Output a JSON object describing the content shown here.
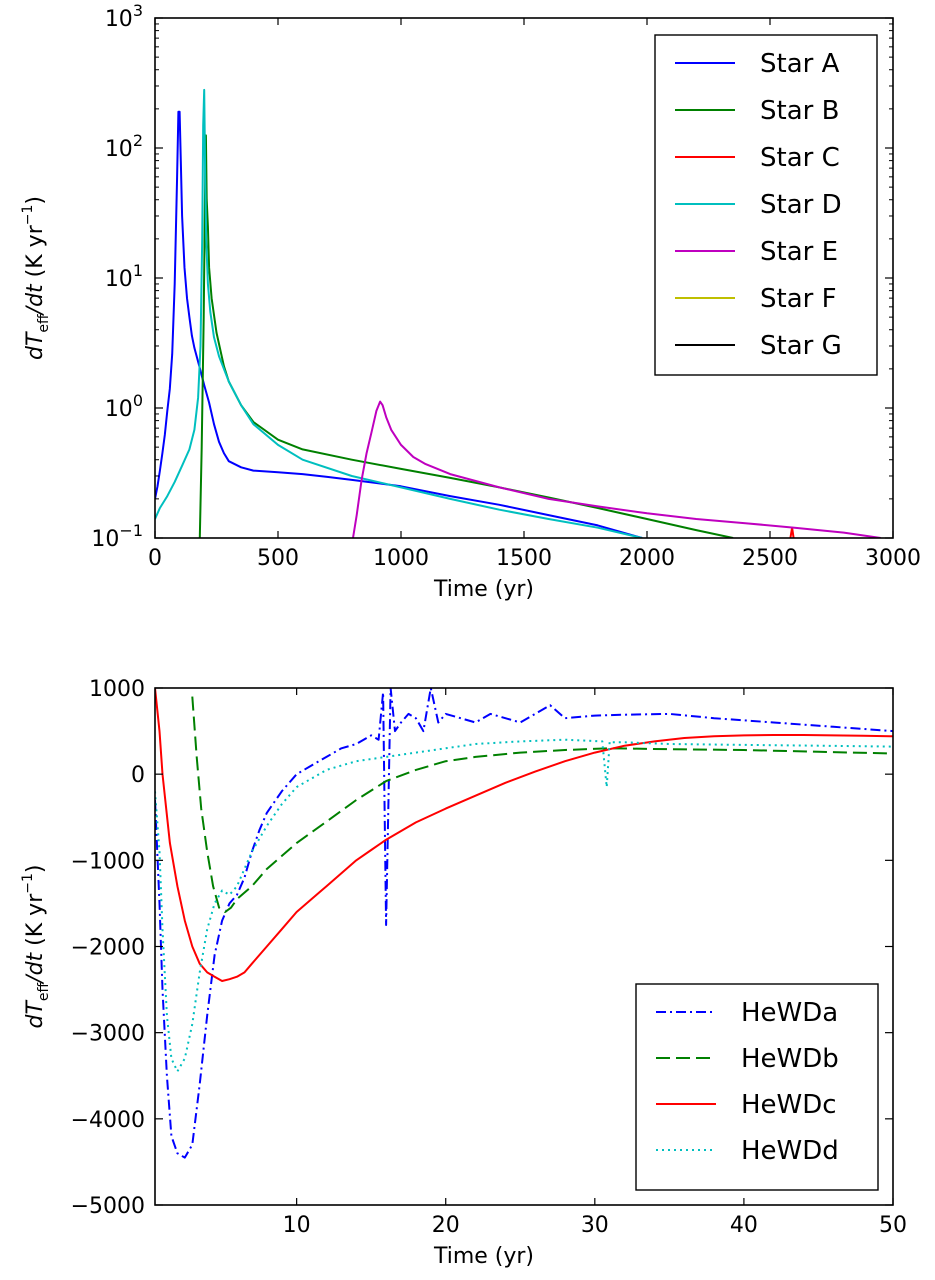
{
  "chart_data": [
    {
      "type": "line",
      "xlabel": "Time (yr)",
      "ylabel": "dT_eff/dt (K yr⁻¹)",
      "xlim": [
        0,
        3000
      ],
      "ylim": [
        0.1,
        1000
      ],
      "yscale": "log",
      "xticks": [
        "0",
        "500",
        "1000",
        "1500",
        "2000",
        "2500",
        "3000"
      ],
      "yticks": [
        {
          "base": "10",
          "exp": "−1"
        },
        {
          "base": "10",
          "exp": "0"
        },
        {
          "base": "10",
          "exp": "1"
        },
        {
          "base": "10",
          "exp": "2"
        },
        {
          "base": "10",
          "exp": "3"
        }
      ],
      "legend_position": "top-right",
      "grid": false,
      "series": [
        {
          "name": "Star A",
          "color": "#0000ff",
          "style": "solid",
          "x": [
            0,
            10,
            20,
            30,
            40,
            50,
            60,
            70,
            80,
            90,
            95,
            100,
            105,
            110,
            120,
            130,
            140,
            150,
            160,
            180,
            200,
            220,
            240,
            260,
            280,
            300,
            350,
            400,
            500,
            600,
            700,
            800,
            900,
            1000,
            1200,
            1400,
            1600,
            1800,
            1980
          ],
          "y": [
            0.2,
            0.25,
            0.33,
            0.45,
            0.62,
            0.95,
            1.4,
            2.6,
            9,
            60,
            190,
            190,
            80,
            30,
            12,
            7,
            5,
            3.6,
            2.9,
            2.1,
            1.5,
            1.1,
            0.75,
            0.55,
            0.45,
            0.39,
            0.35,
            0.33,
            0.32,
            0.31,
            0.295,
            0.28,
            0.265,
            0.25,
            0.21,
            0.18,
            0.15,
            0.125,
            0.1
          ]
        },
        {
          "name": "Star B",
          "color": "#008000",
          "style": "solid",
          "x": [
            182,
            190,
            198,
            204,
            207,
            210,
            215,
            220,
            230,
            250,
            280,
            300,
            350,
            400,
            500,
            600,
            800,
            1000,
            1200,
            1400,
            1600,
            1800,
            2000,
            2200,
            2350
          ],
          "y": [
            0.1,
            0.5,
            5,
            60,
            125,
            40,
            25,
            12,
            7,
            3.8,
            2.1,
            1.6,
            1.05,
            0.78,
            0.57,
            0.48,
            0.4,
            0.34,
            0.29,
            0.245,
            0.205,
            0.17,
            0.14,
            0.115,
            0.1
          ]
        },
        {
          "name": "Star C",
          "color": "#ff0000",
          "style": "solid",
          "x": [
            2583,
            2590,
            2596
          ],
          "y": [
            0.1,
            0.12,
            0.1
          ]
        },
        {
          "name": "Star D",
          "color": "#00bfbf",
          "style": "solid",
          "x": [
            0,
            20,
            50,
            80,
            110,
            140,
            160,
            175,
            185,
            192,
            196,
            200,
            204,
            208,
            215,
            225,
            240,
            260,
            300,
            350,
            400,
            500,
            600,
            800,
            1000,
            1200,
            1400,
            1600,
            1800,
            1980
          ],
          "y": [
            0.14,
            0.17,
            0.21,
            0.27,
            0.36,
            0.48,
            0.68,
            1.2,
            3,
            20,
            150,
            280,
            60,
            20,
            9,
            5.5,
            3.5,
            2.5,
            1.6,
            1.05,
            0.75,
            0.52,
            0.4,
            0.3,
            0.245,
            0.2,
            0.165,
            0.14,
            0.12,
            0.1
          ]
        },
        {
          "name": "Star E",
          "color": "#bf00bf",
          "style": "solid",
          "x": [
            805,
            820,
            840,
            860,
            880,
            900,
            915,
            925,
            940,
            960,
            1000,
            1050,
            1100,
            1200,
            1400,
            1600,
            1800,
            2000,
            2200,
            2300,
            2400,
            2600,
            2800,
            2950
          ],
          "y": [
            0.1,
            0.15,
            0.28,
            0.45,
            0.65,
            0.95,
            1.12,
            1.05,
            0.85,
            0.68,
            0.52,
            0.42,
            0.37,
            0.31,
            0.245,
            0.2,
            0.175,
            0.155,
            0.14,
            0.135,
            0.13,
            0.12,
            0.11,
            0.1
          ]
        },
        {
          "name": "Star F",
          "color": "#bfbf00",
          "style": "solid",
          "x": [],
          "y": []
        },
        {
          "name": "Star G",
          "color": "#000000",
          "style": "solid",
          "x": [],
          "y": []
        }
      ]
    },
    {
      "type": "line",
      "xlabel": "Time (yr)",
      "ylabel": "dT_eff/dt (K yr⁻¹)",
      "xlim": [
        0.5,
        50
      ],
      "ylim": [
        -5000,
        1000
      ],
      "xticks": [
        "10",
        "20",
        "30",
        "40",
        "50"
      ],
      "yticks": [
        "1000",
        "0",
        "−1000",
        "−2000",
        "−3000",
        "−4000",
        "−5000"
      ],
      "legend_position": "lower-right",
      "grid": false,
      "series": [
        {
          "name": "HeWDa",
          "color": "#0000ff",
          "style": "dashdot",
          "x": [
            0.5,
            0.8,
            1.0,
            1.3,
            1.6,
            2.0,
            2.5,
            3.0,
            3.5,
            4.0,
            4.5,
            5.0,
            5.5,
            6.0,
            6.5,
            7.0,
            7.5,
            8.0,
            9.0,
            10.0,
            11.0,
            12.0,
            13.0,
            14.0,
            15.0,
            15.5,
            15.8,
            16.0,
            16.3,
            16.6,
            17.0,
            17.5,
            18.0,
            18.5,
            19.0,
            19.5,
            20.0,
            21.0,
            22.0,
            23.0,
            24.0,
            25.0,
            26.0,
            27.0,
            28.0,
            30.0,
            32.0,
            35.0,
            38.0,
            42.0,
            46.0,
            50.0
          ],
          "y": [
            -300,
            -1500,
            -2500,
            -3500,
            -4200,
            -4400,
            -4450,
            -4300,
            -3600,
            -2800,
            -2100,
            -1700,
            -1500,
            -1400,
            -1200,
            -900,
            -650,
            -450,
            -200,
            0,
            100,
            200,
            300,
            350,
            450,
            400,
            950,
            -1750,
            1000,
            500,
            600,
            700,
            650,
            500,
            1000,
            600,
            700,
            650,
            600,
            700,
            650,
            600,
            700,
            800,
            650,
            680,
            690,
            700,
            650,
            600,
            550,
            500
          ]
        },
        {
          "name": "HeWDb",
          "color": "#008000",
          "style": "dashed",
          "x": [
            3.0,
            3.3,
            3.6,
            4.0,
            4.4,
            4.8,
            5.2,
            5.6,
            6.0,
            7.0,
            8.0,
            10.0,
            12.0,
            14.0,
            16.0,
            18.0,
            20.0,
            22.0,
            25.0,
            28.0,
            31.0,
            35.0,
            40.0,
            45.0,
            50.0
          ],
          "y": [
            900,
            200,
            -400,
            -900,
            -1300,
            -1550,
            -1600,
            -1550,
            -1450,
            -1300,
            -1100,
            -800,
            -550,
            -300,
            -80,
            50,
            150,
            200,
            250,
            280,
            300,
            290,
            280,
            260,
            240
          ]
        },
        {
          "name": "HeWDc",
          "color": "#ff0000",
          "style": "solid",
          "x": [
            0.5,
            0.8,
            1.0,
            1.5,
            2.0,
            2.5,
            3.0,
            3.5,
            4.0,
            4.5,
            5.0,
            5.5,
            6.0,
            6.5,
            7.0,
            8.0,
            9.0,
            10.0,
            11.0,
            12.0,
            13.0,
            14.0,
            15.0,
            16.0,
            18.0,
            20.0,
            22.0,
            24.0,
            26.0,
            28.0,
            30.0,
            32.0,
            34.0,
            36.0,
            38.0,
            40.0,
            42.0,
            44.0,
            46.0,
            48.0,
            50.0
          ],
          "y": [
            1000,
            500,
            0,
            -800,
            -1300,
            -1700,
            -2000,
            -2200,
            -2300,
            -2350,
            -2400,
            -2380,
            -2350,
            -2300,
            -2200,
            -2000,
            -1800,
            -1600,
            -1450,
            -1300,
            -1150,
            -1000,
            -880,
            -760,
            -560,
            -400,
            -250,
            -100,
            30,
            150,
            250,
            330,
            380,
            420,
            440,
            450,
            455,
            455,
            450,
            445,
            440
          ]
        },
        {
          "name": "HeWDd",
          "color": "#00bfbf",
          "style": "dotted",
          "x": [
            0.5,
            0.8,
            1.0,
            1.3,
            1.6,
            2.0,
            2.5,
            3.0,
            3.5,
            4.0,
            4.5,
            5.0,
            5.5,
            6.0,
            7.0,
            8.0,
            9.0,
            10.0,
            12.0,
            14.0,
            16.0,
            18.0,
            20.0,
            22.0,
            25.0,
            28.0,
            30.5,
            30.8,
            31.0,
            31.2,
            32.0,
            35.0,
            40.0,
            45.0,
            50.0
          ],
          "y": [
            -200,
            -900,
            -1800,
            -2800,
            -3300,
            -3450,
            -3300,
            -2900,
            -2300,
            -1800,
            -1500,
            -1350,
            -1400,
            -1300,
            -900,
            -600,
            -350,
            -150,
            50,
            150,
            200,
            250,
            300,
            350,
            380,
            400,
            380,
            -150,
            380,
            370,
            370,
            350,
            340,
            330,
            320
          ]
        }
      ]
    }
  ]
}
